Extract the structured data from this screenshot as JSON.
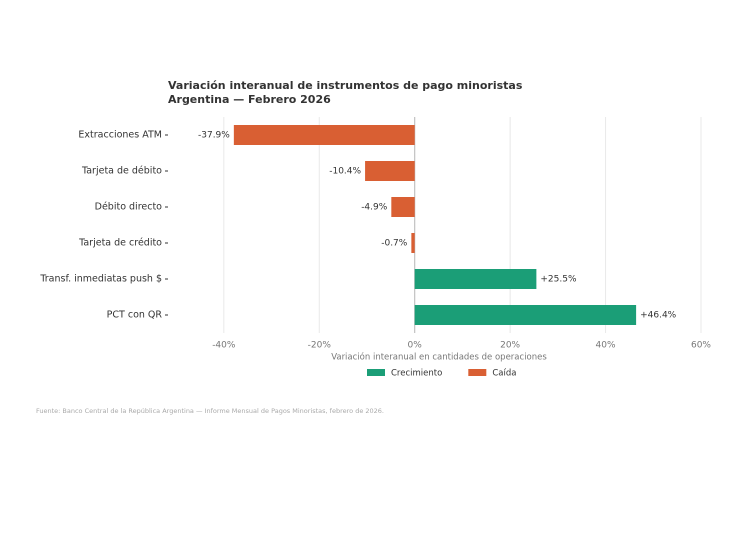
{
  "chart_data": {
    "type": "barh",
    "title": "Variación interanual de instrumentos de pago minoristas",
    "subtitle": "Argentina — Febrero 2026",
    "categories": [
      "Extracciones ATM",
      "Tarjeta de débito",
      "Débito directo",
      "Tarjeta de crédito",
      "Transf. inmediatas push $",
      "PCT con QR"
    ],
    "values": [
      -37.9,
      -10.4,
      -4.9,
      -0.7,
      25.5,
      46.4
    ],
    "value_labels": [
      "-37.9%",
      "-10.4%",
      "-4.9%",
      "-0.7%",
      "+25.5%",
      "+46.4%"
    ],
    "colors": [
      "#d95f33",
      "#d95f33",
      "#d95f33",
      "#d95f33",
      "#1b9e77",
      "#1b9e77"
    ],
    "xlim": [
      -51.7,
      60
    ],
    "xticks": [
      {
        "value": -40,
        "label": "-40%"
      },
      {
        "value": -20,
        "label": "-20%"
      },
      {
        "value": 0,
        "label": "0%"
      },
      {
        "value": 20,
        "label": "20%"
      },
      {
        "value": 40,
        "label": "40%"
      },
      {
        "value": 60,
        "label": "60%"
      }
    ],
    "xlabel": "Variación interanual en cantidades de operaciones",
    "legend": [
      {
        "name": "Crecimiento",
        "color": "#1b9e77"
      },
      {
        "name": "Caída",
        "color": "#d95f33"
      }
    ],
    "grid": true,
    "source": "Fuente: Banco Central de la República Argentina — Informe Mensual de Pagos Minoristas, febrero de 2026."
  }
}
